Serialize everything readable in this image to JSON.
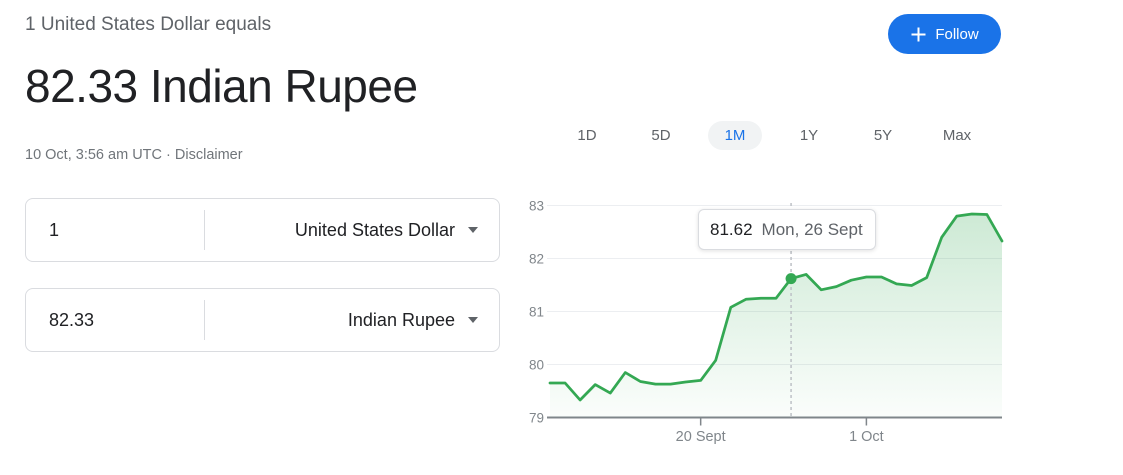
{
  "header": {
    "subtitle": "1 United States Dollar equals",
    "title": "82.33 Indian Rupee",
    "timestamp": "10 Oct, 3:56 am UTC",
    "separator": "·",
    "disclaimer": "Disclaimer",
    "follow_label": "Follow"
  },
  "converter": {
    "rows": [
      {
        "id": "from",
        "amount": "1",
        "currency": "United States Dollar"
      },
      {
        "id": "to",
        "amount": "82.33",
        "currency": "Indian Rupee"
      }
    ]
  },
  "range_tabs": [
    {
      "label": "1D",
      "selected": false
    },
    {
      "label": "5D",
      "selected": false
    },
    {
      "label": "1M",
      "selected": true
    },
    {
      "label": "1Y",
      "selected": false
    },
    {
      "label": "5Y",
      "selected": false
    },
    {
      "label": "Max",
      "selected": false
    }
  ],
  "chart_data": {
    "type": "area",
    "x": [
      "10 Sept",
      "11 Sept",
      "12 Sept",
      "13 Sept",
      "14 Sept",
      "15 Sept",
      "16 Sept",
      "17 Sept",
      "18 Sept",
      "19 Sept",
      "20 Sept",
      "21 Sept",
      "22 Sept",
      "23 Sept",
      "24 Sept",
      "25 Sept",
      "26 Sept",
      "27 Sept",
      "28 Sept",
      "29 Sept",
      "30 Sept",
      "1 Oct",
      "2 Oct",
      "3 Oct",
      "4 Oct",
      "5 Oct",
      "6 Oct",
      "7 Oct",
      "8 Oct",
      "9 Oct",
      "10 Oct"
    ],
    "values": [
      79.65,
      79.65,
      79.33,
      79.62,
      79.46,
      79.85,
      79.68,
      79.63,
      79.63,
      79.67,
      79.7,
      80.08,
      81.08,
      81.23,
      81.25,
      81.25,
      81.62,
      81.7,
      81.41,
      81.47,
      81.59,
      81.65,
      81.65,
      81.52,
      81.49,
      81.64,
      82.4,
      82.8,
      82.84,
      82.83,
      82.33
    ],
    "ylim": [
      79,
      83
    ],
    "y_ticks": [
      79,
      80,
      81,
      82,
      83
    ],
    "x_ticks": [
      {
        "label": "20 Sept",
        "index": 10
      },
      {
        "label": "1 Oct",
        "index": 21
      }
    ],
    "highlight": {
      "index": 16,
      "value": 81.62,
      "value_label": "81.62",
      "date_label": "Mon, 26 Sept"
    },
    "grid": true,
    "legend_position": "none",
    "line_color": "#34a853",
    "axis_color": "#80868b",
    "gridline_color": "#eceef1",
    "crosshair_color": "#bdc1c6"
  },
  "colors": {
    "accent_blue": "#1a73e8",
    "chart_green": "#34a853",
    "text_dark": "#202124",
    "text_gray": "#5f6368",
    "border_gray": "#dadce0"
  }
}
